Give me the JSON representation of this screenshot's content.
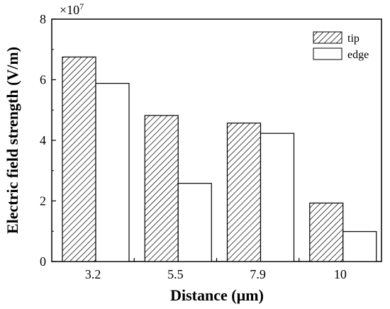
{
  "chart_data": {
    "type": "bar",
    "categories": [
      "3.2",
      "5.5",
      "7.9",
      "10"
    ],
    "series": [
      {
        "name": "tip",
        "values": [
          6.75,
          4.82,
          4.57,
          1.93
        ],
        "fill": "hatched"
      },
      {
        "name": "edge",
        "values": [
          5.88,
          2.58,
          4.23,
          0.99
        ],
        "fill": "white"
      }
    ],
    "multiplier_label": "×10",
    "multiplier_exponent": "7",
    "xlabel": "Distance (µm)",
    "ylabel": "Electric field strength (V/m)",
    "ylim": [
      0,
      8
    ],
    "yticks": [
      "0",
      "2",
      "4",
      "6",
      "8"
    ],
    "grid": false,
    "legend_position": "top-right"
  }
}
